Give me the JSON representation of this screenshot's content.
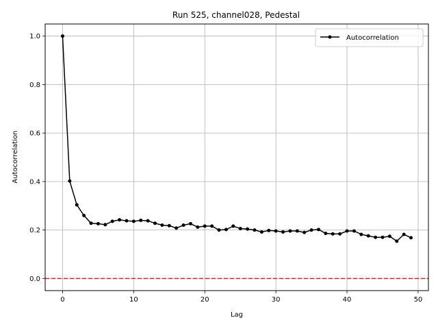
{
  "chart_data": {
    "type": "line",
    "title": "Run 525, channel028, Pedestal",
    "xlabel": "Lag",
    "ylabel": "Autocorrelation",
    "xlim": [
      -2.45,
      51.45
    ],
    "ylim": [
      -0.05,
      1.05
    ],
    "xticks": [
      0,
      10,
      20,
      30,
      40,
      50
    ],
    "yticks": [
      0.0,
      0.2,
      0.4,
      0.6,
      0.8,
      1.0
    ],
    "xtick_labels": [
      "0",
      "10",
      "20",
      "30",
      "40",
      "50"
    ],
    "ytick_labels": [
      "0.0",
      "0.2",
      "0.4",
      "0.6",
      "0.8",
      "1.0"
    ],
    "grid": true,
    "legend_position": "top-right",
    "reference_line": {
      "y": 0.0,
      "color": "#d62728",
      "style": "dashed"
    },
    "series": [
      {
        "name": "Autocorrelation",
        "color": "#000000",
        "x": [
          0,
          1,
          2,
          3,
          4,
          5,
          6,
          7,
          8,
          9,
          10,
          11,
          12,
          13,
          14,
          15,
          16,
          17,
          18,
          19,
          20,
          21,
          22,
          23,
          24,
          25,
          26,
          27,
          28,
          29,
          30,
          31,
          32,
          33,
          34,
          35,
          36,
          37,
          38,
          39,
          40,
          41,
          42,
          43,
          44,
          45,
          46,
          47,
          48,
          49
        ],
        "y": [
          1.0,
          0.402,
          0.304,
          0.26,
          0.228,
          0.226,
          0.222,
          0.236,
          0.242,
          0.238,
          0.236,
          0.24,
          0.238,
          0.228,
          0.22,
          0.218,
          0.208,
          0.22,
          0.226,
          0.212,
          0.216,
          0.216,
          0.2,
          0.202,
          0.216,
          0.206,
          0.204,
          0.2,
          0.192,
          0.198,
          0.196,
          0.192,
          0.196,
          0.196,
          0.19,
          0.2,
          0.202,
          0.186,
          0.184,
          0.184,
          0.196,
          0.196,
          0.182,
          0.176,
          0.17,
          0.17,
          0.174,
          0.154,
          0.182,
          0.168
        ]
      }
    ]
  }
}
